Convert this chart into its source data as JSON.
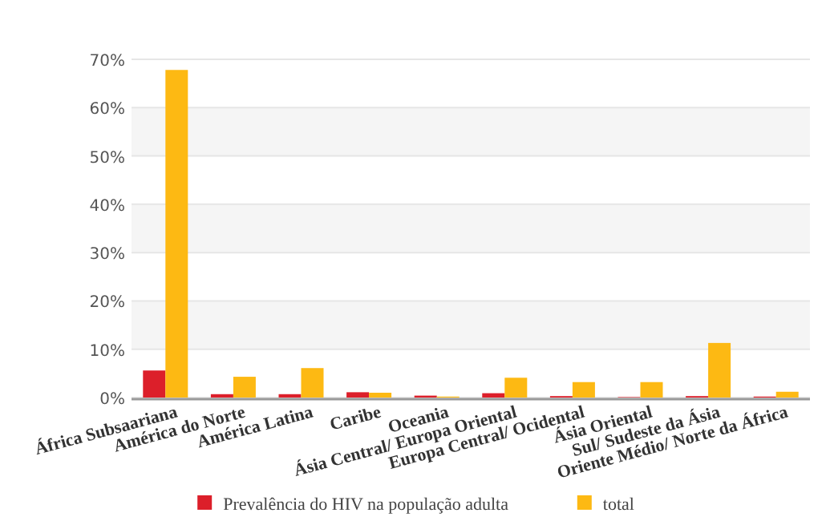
{
  "chart_data": {
    "type": "bar",
    "categories": [
      "África Subsaariana",
      "América do Norte",
      "América Latina",
      "Caribe",
      "Oceania",
      "Ásia Central/ Europa Oriental",
      "Europa Central/ Ocidental",
      "Ásia Oriental",
      "Sul/ Sudeste da Ásia",
      "Oriente Médio/ Norte da África"
    ],
    "series": [
      {
        "name": "Prevalência do HIV na população adulta",
        "color": "#dc1f2a",
        "values": [
          5.6,
          0.7,
          0.7,
          1.1,
          0.4,
          0.9,
          0.3,
          0.1,
          0.3,
          0.2
        ]
      },
      {
        "name": "total",
        "color": "#fdb913",
        "values": [
          67.8,
          4.3,
          6.1,
          1.0,
          0.2,
          4.1,
          3.2,
          3.2,
          11.3,
          1.2
        ]
      }
    ],
    "ylim": [
      0,
      70
    ],
    "yticks": [
      {
        "value": 0,
        "label": "0%"
      },
      {
        "value": 10,
        "label": "10%"
      },
      {
        "value": 20,
        "label": "20%"
      },
      {
        "value": 30,
        "label": "30%"
      },
      {
        "value": 40,
        "label": "40%"
      },
      {
        "value": 50,
        "label": "50%"
      },
      {
        "value": 60,
        "label": "60%"
      },
      {
        "value": 70,
        "label": "70%"
      }
    ],
    "grid": "y",
    "legend": "bottom"
  }
}
